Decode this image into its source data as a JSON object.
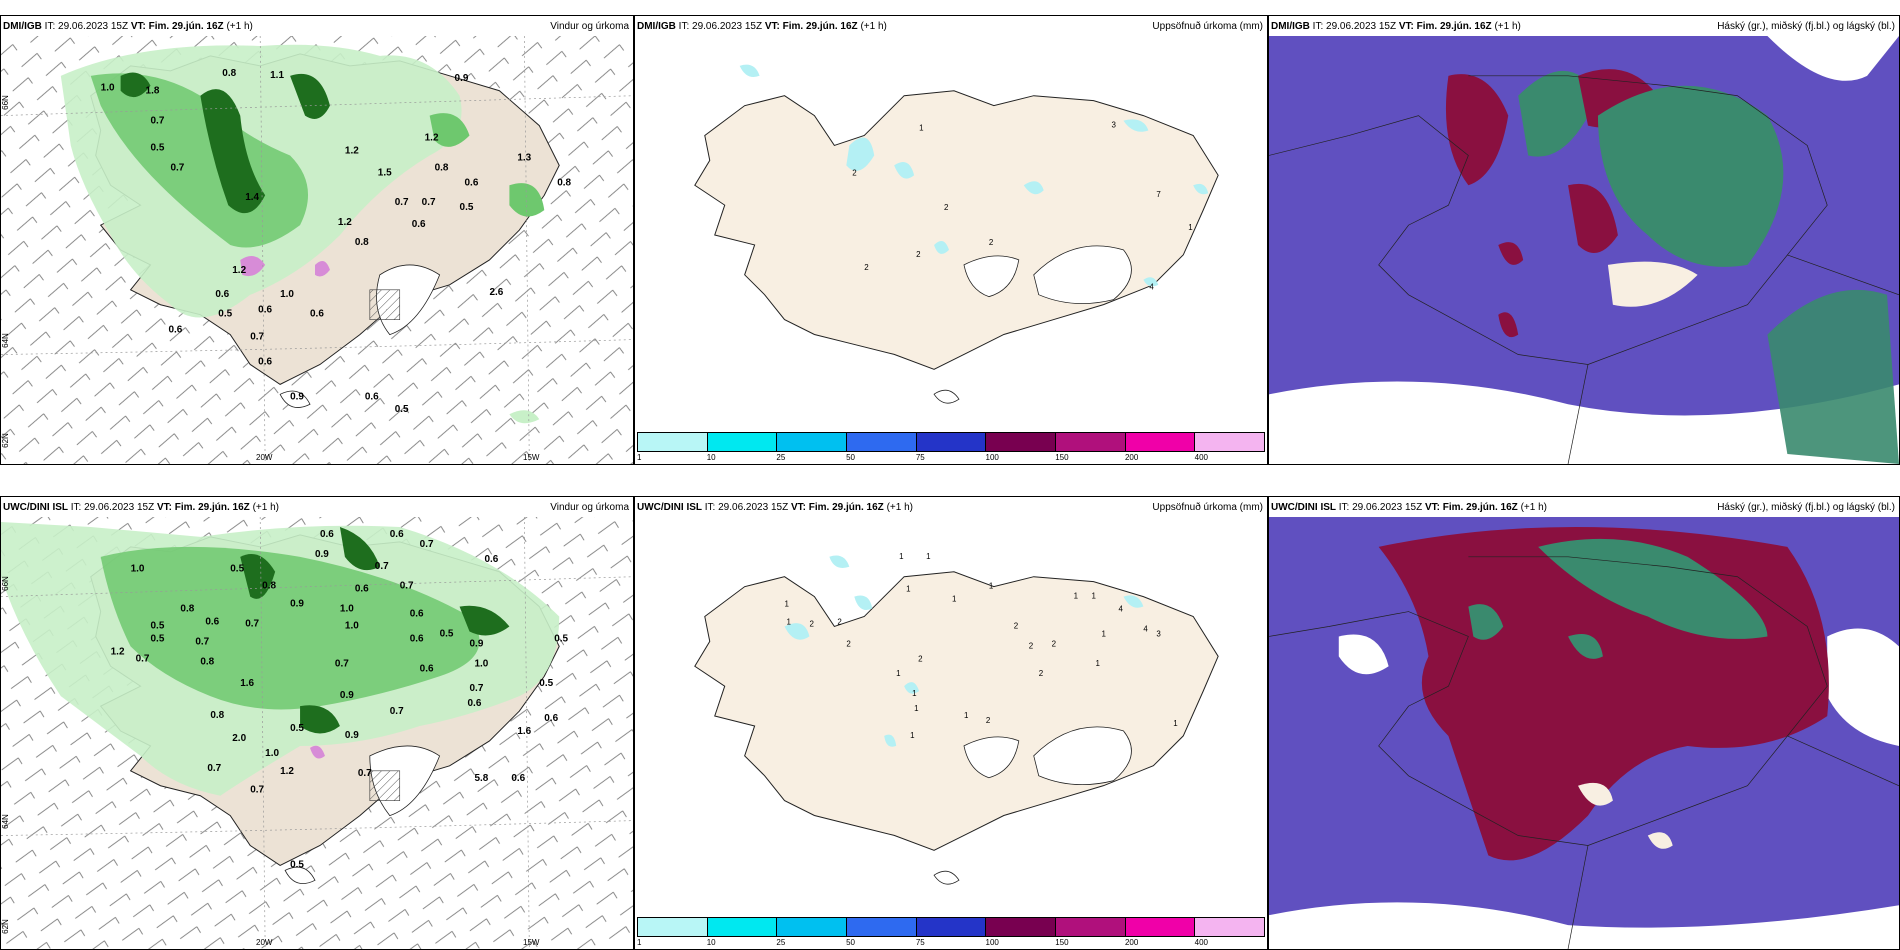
{
  "panels": {
    "p1": {
      "model": "DMI/IGB",
      "it_label": "IT:",
      "it": "29.06.2023 15Z",
      "vt_label": "VT:",
      "vt": "Fim. 29.jún. 16Z",
      "lead": "(+1 h)",
      "product": "Vindur og úrkoma"
    },
    "p2": {
      "model": "DMI/IGB",
      "it_label": "IT:",
      "it": "29.06.2023 15Z",
      "vt_label": "VT:",
      "vt": "Fim. 29.jún. 16Z",
      "lead": "(+1 h)",
      "product": "Uppsöfnuð úrkoma (mm)"
    },
    "p3": {
      "model": "DMI/IGB",
      "it_label": "IT:",
      "it": "29.06.2023 15Z",
      "vt_label": "VT:",
      "vt": "Fim. 29.jún. 16Z",
      "lead": "(+1 h)",
      "product": "Háský (gr.), miðský (fj.bl.) og lágský (bl.)"
    },
    "p4": {
      "model": "UWC/DINI ISL",
      "it_label": "IT:",
      "it": "29.06.2023 15Z",
      "vt_label": "VT:",
      "vt": "Fim. 29.jún. 16Z",
      "lead": "(+1 h)",
      "product": "Vindur og úrkoma",
      "wrapped_tail": "h)"
    },
    "p5": {
      "model": "UWC/DINI ISL",
      "it_label": "IT:",
      "it": "29.06.2023 15Z",
      "vt_label": "VT:",
      "vt": "Fim. 29.jún. 16Z",
      "lead": "(+1 h)",
      "product": "Uppsöfnuð úrkoma (mm)"
    },
    "p6": {
      "model": "UWC/DINI ISL",
      "it_label": "IT:",
      "it": "29.06.2023 15Z",
      "vt_label": "VT:",
      "vt": "Fim. 29.jún. 16Z",
      "lead": "(+1 h)",
      "product": "Háský (gr.), miðský (fj.bl.) og lágský (bl.)"
    }
  },
  "axes": {
    "lon_20w": "20W",
    "lon_15w": "15W",
    "lat_66n": "66N",
    "lat_64n": "64N",
    "lat_62n": "62N"
  },
  "colorbar": {
    "ticks": [
      "1",
      "10",
      "25",
      "50",
      "75",
      "100",
      "150",
      "200",
      "400"
    ],
    "colors": [
      "#b8f6f6",
      "#00e8f0",
      "#00c0f0",
      "#2e6af0",
      "#2434c8",
      "#780050",
      "#b0107c",
      "#f000a8",
      "#f4b4f0"
    ]
  },
  "colors": {
    "land": "#f8efe2",
    "rain_light": "#c8f0c8",
    "rain_mid": "#6ec86e",
    "rain_dark": "#1e6e1e",
    "cloud_high": "#3a8a6e",
    "cloud_mid": "#6050c0",
    "cloud_low": "#8a1040",
    "mm_fill": "#b4f0f4"
  },
  "labels": {
    "p1": [
      "0.8",
      "0.9",
      "1.1",
      "1.0",
      "1.8",
      "0.7",
      "1.2",
      "0.5",
      "0.7",
      "1.2",
      "1.5",
      "0.8",
      "1.3",
      "0.6",
      "0.8",
      "1.4",
      "0.7",
      "0.7",
      "0.5",
      "0.6",
      "1.2",
      "0.8",
      "0.6",
      "1.0",
      "1.2",
      "0.5",
      "0.6",
      "0.6",
      "0.7",
      "2.6",
      "0.6",
      "0.6",
      "0.9",
      "0.6",
      "0.5"
    ],
    "p2": [
      "1",
      "2",
      "2",
      "2",
      "3",
      "7",
      "2",
      "2",
      "4",
      "1"
    ],
    "p4": [
      "0.6",
      "0.6",
      "0.7",
      "0.9",
      "0.6",
      "1.0",
      "0.5",
      "0.7",
      "0.8",
      "0.6",
      "0.7",
      "0.9",
      "0.6",
      "1.0",
      "0.8",
      "0.6",
      "0.7",
      "0.5",
      "1.0",
      "0.6",
      "0.7",
      "0.5",
      "1.2",
      "0.7",
      "0.5",
      "0.7",
      "1.0",
      "0.6",
      "0.8",
      "0.9",
      "1.6",
      "0.9",
      "0.7",
      "0.6",
      "0.7",
      "0.5",
      "0.5",
      "0.8",
      "0.6",
      "2.0",
      "0.5",
      "1.0",
      "0.9",
      "1.2",
      "0.7",
      "0.6",
      "0.7",
      "0.7",
      "0.5",
      "5.8",
      "1.6"
    ],
    "p5": [
      "1",
      "1",
      "2",
      "1",
      "1",
      "2",
      "2",
      "2",
      "1",
      "1",
      "4",
      "1",
      "2",
      "1",
      "2",
      "1",
      "1",
      "1",
      "1",
      "4",
      "3",
      "2",
      "1",
      "2",
      "1",
      "1",
      "2",
      "1",
      "1"
    ]
  }
}
